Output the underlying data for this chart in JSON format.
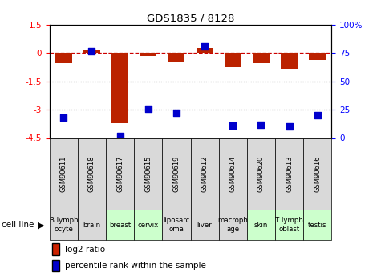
{
  "title": "GDS1835 / 8128",
  "samples": [
    "GSM90611",
    "GSM90618",
    "GSM90617",
    "GSM90615",
    "GSM90619",
    "GSM90612",
    "GSM90614",
    "GSM90620",
    "GSM90613",
    "GSM90616"
  ],
  "cell_lines": [
    "B lymph\nocyte",
    "brain",
    "breast",
    "cervix",
    "liposarc\noma",
    "liver",
    "macroph\nage",
    "skin",
    "T lymph\noblast",
    "testis"
  ],
  "cell_colors": [
    "#d9d9d9",
    "#d9d9d9",
    "#ccffcc",
    "#ccffcc",
    "#d9d9d9",
    "#d9d9d9",
    "#d9d9d9",
    "#ccffcc",
    "#ccffcc",
    "#ccffcc"
  ],
  "gsm_color": "#d9d9d9",
  "log2_ratio": [
    -0.55,
    0.18,
    -3.7,
    -0.15,
    -0.45,
    0.28,
    -0.75,
    -0.55,
    -0.85,
    -0.35
  ],
  "percentile_rank": [
    18,
    77,
    2,
    26,
    22,
    81,
    11,
    12,
    10,
    20
  ],
  "ylim_left": [
    -4.5,
    1.5
  ],
  "ylim_right": [
    0,
    100
  ],
  "hline_y": 0,
  "dotted_lines": [
    -1.5,
    -3.0
  ],
  "bar_color": "#bb2200",
  "dot_color": "#0000cc",
  "dashed_color": "#cc0000",
  "legend_bar_color": "#cc2200",
  "legend_dot_color": "#0000cc",
  "left_ticks": [
    1.5,
    0,
    -1.5,
    -3.0,
    -4.5
  ],
  "left_tick_labels": [
    "1.5",
    "0",
    "-1.5",
    "-3",
    "-4.5"
  ],
  "right_ticks": [
    100,
    75,
    50,
    25,
    0
  ],
  "right_tick_labels": [
    "100%",
    "75",
    "50",
    "25",
    "0"
  ]
}
